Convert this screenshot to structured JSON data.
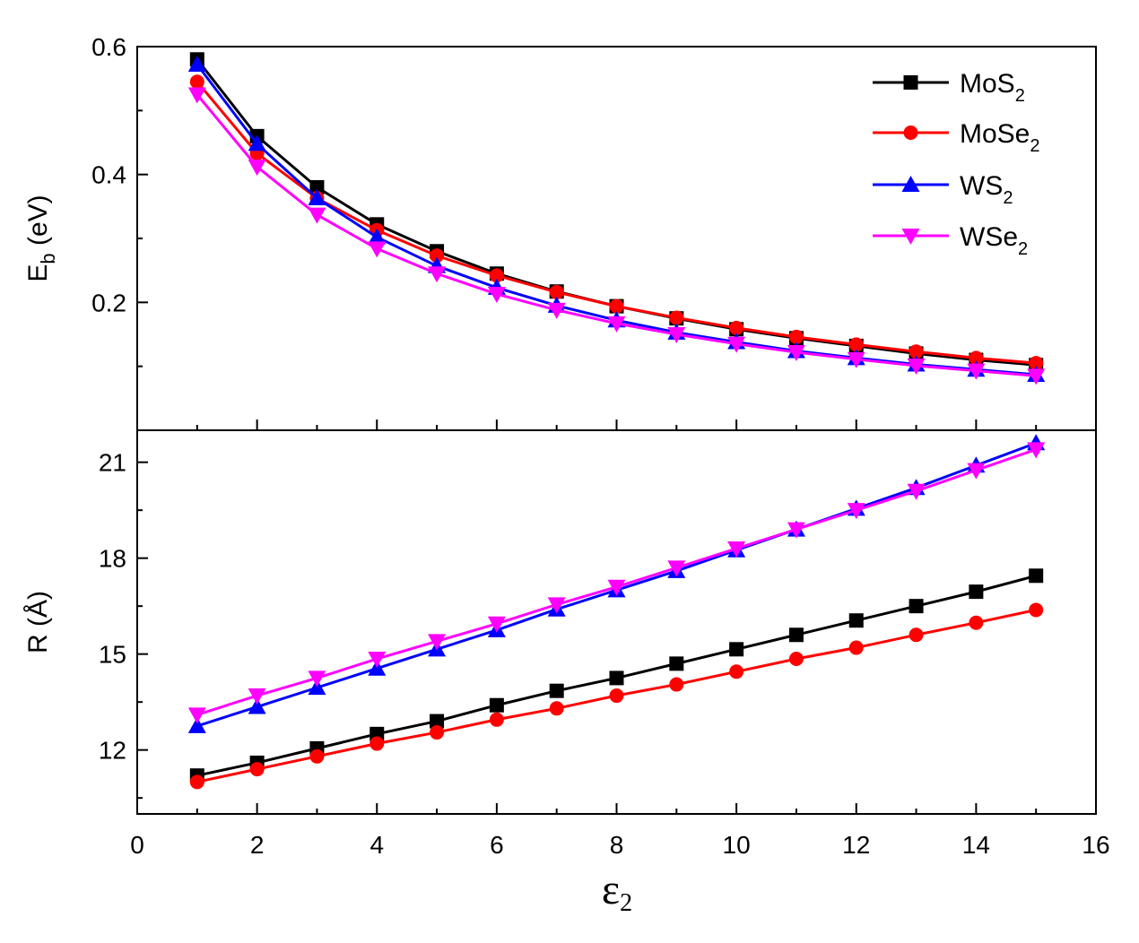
{
  "chart_data": [
    {
      "type": "line",
      "panel": "top",
      "ylabel_main": "E",
      "ylabel_sub": "b",
      "ylabel_unit": " (eV)",
      "ylim": [
        0.0,
        0.6
      ],
      "yticks": [
        0.2,
        0.4,
        0.6
      ],
      "ytick_labels": [
        "0.2",
        "0.4",
        "0.6"
      ],
      "x": [
        1,
        2,
        3,
        4,
        5,
        6,
        7,
        8,
        9,
        10,
        11,
        12,
        13,
        14,
        15
      ],
      "series": [
        {
          "name": "MoS2",
          "label_main": "MoS",
          "label_sub": "2",
          "color": "#000000",
          "marker": "square",
          "values": [
            0.58,
            0.46,
            0.38,
            0.322,
            0.28,
            0.245,
            0.217,
            0.194,
            0.175,
            0.158,
            0.144,
            0.132,
            0.12,
            0.11,
            0.102
          ]
        },
        {
          "name": "MoSe2",
          "label_main": "MoSe",
          "label_sub": "2",
          "color": "#ff0000",
          "marker": "circle",
          "values": [
            0.545,
            0.433,
            0.363,
            0.313,
            0.273,
            0.242,
            0.216,
            0.194,
            0.176,
            0.16,
            0.146,
            0.134,
            0.123,
            0.113,
            0.105
          ]
        },
        {
          "name": "WS2",
          "label_main": "WS",
          "label_sub": "2",
          "color": "#0000ff",
          "marker": "triangle-up",
          "values": [
            0.572,
            0.448,
            0.363,
            0.302,
            0.257,
            0.223,
            0.195,
            0.172,
            0.153,
            0.138,
            0.124,
            0.113,
            0.103,
            0.095,
            0.087
          ]
        },
        {
          "name": "WSe2",
          "label_main": "WSe",
          "label_sub": "2",
          "color": "#ff00ff",
          "marker": "triangle-down",
          "values": [
            0.525,
            0.412,
            0.337,
            0.284,
            0.245,
            0.213,
            0.188,
            0.167,
            0.15,
            0.135,
            0.122,
            0.111,
            0.101,
            0.093,
            0.085
          ]
        }
      ],
      "legend": "top-right"
    },
    {
      "type": "line",
      "panel": "bottom",
      "ylabel": "R (Å)",
      "ylim": [
        10.0,
        22.0
      ],
      "yticks": [
        12,
        15,
        18,
        21
      ],
      "ytick_labels": [
        "12",
        "15",
        "18",
        "21"
      ],
      "xlabel_main": "ε",
      "xlabel_sub": "2",
      "xlim": [
        0,
        16
      ],
      "xticks": [
        0,
        2,
        4,
        6,
        8,
        10,
        12,
        14,
        16
      ],
      "xtick_labels": [
        "0",
        "2",
        "4",
        "6",
        "8",
        "10",
        "12",
        "14",
        "16"
      ],
      "x": [
        1,
        2,
        3,
        4,
        5,
        6,
        7,
        8,
        9,
        10,
        11,
        12,
        13,
        14,
        15
      ],
      "series": [
        {
          "name": "MoS2",
          "color": "#000000",
          "marker": "square",
          "values": [
            11.2,
            11.6,
            12.05,
            12.5,
            12.9,
            13.4,
            13.85,
            14.25,
            14.7,
            15.15,
            15.6,
            16.05,
            16.5,
            16.95,
            17.45
          ]
        },
        {
          "name": "MoSe2",
          "color": "#ff0000",
          "marker": "circle",
          "values": [
            11.0,
            11.4,
            11.8,
            12.2,
            12.55,
            12.95,
            13.3,
            13.7,
            14.05,
            14.45,
            14.85,
            15.2,
            15.6,
            15.98,
            16.38
          ]
        },
        {
          "name": "WS2",
          "color": "#0000ff",
          "marker": "triangle-up",
          "values": [
            12.75,
            13.35,
            13.95,
            14.55,
            15.15,
            15.75,
            16.4,
            17.0,
            17.6,
            18.25,
            18.9,
            19.55,
            20.2,
            20.9,
            21.6
          ]
        },
        {
          "name": "WSe2",
          "color": "#ff00ff",
          "marker": "triangle-down",
          "values": [
            13.1,
            13.7,
            14.25,
            14.85,
            15.4,
            15.95,
            16.55,
            17.1,
            17.7,
            18.3,
            18.9,
            19.5,
            20.1,
            20.75,
            21.4
          ]
        }
      ]
    }
  ]
}
